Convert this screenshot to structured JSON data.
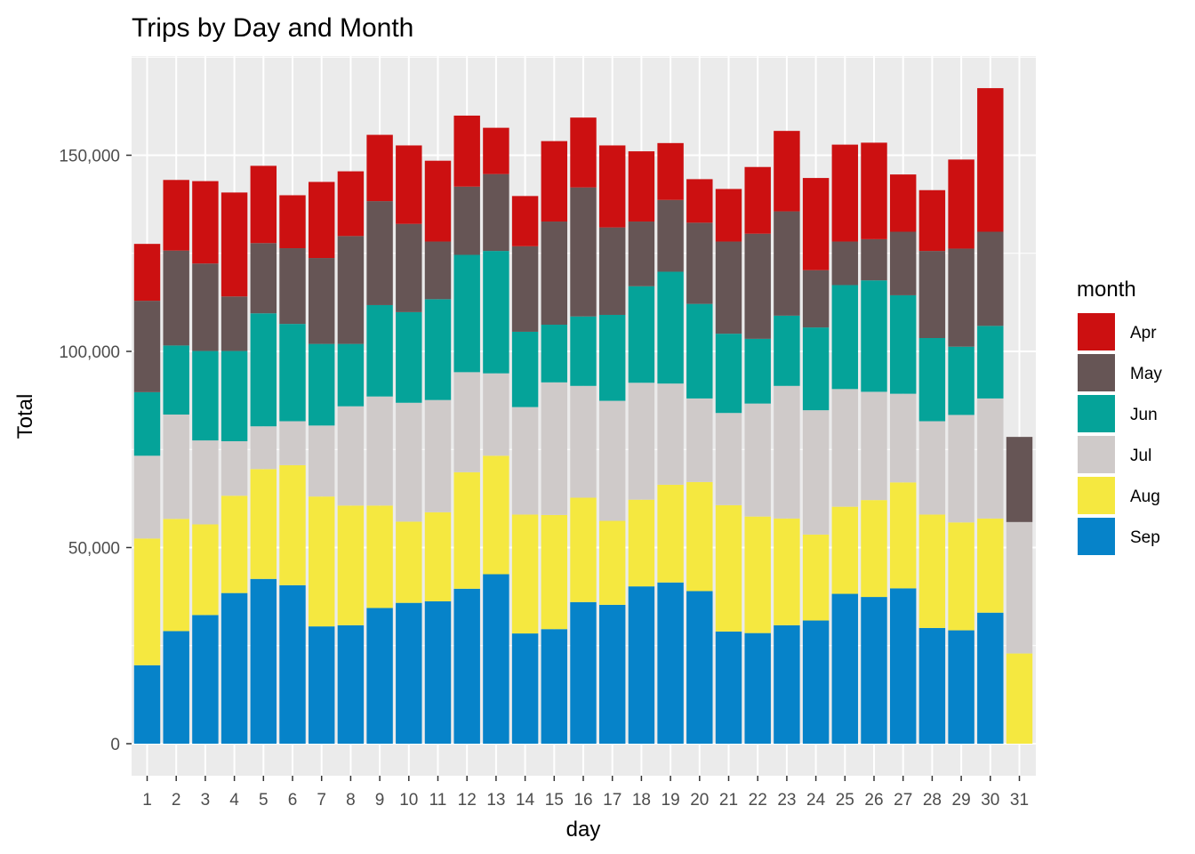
{
  "chart_data": {
    "type": "bar",
    "stacked": true,
    "title": "Trips by Day and Month",
    "xlabel": "day",
    "ylabel": "Total",
    "ylim": [
      0,
      175000
    ],
    "yticks": [
      0,
      50000,
      100000,
      150000
    ],
    "ytick_labels": [
      "0",
      "50,000",
      "100,000",
      "150,000"
    ],
    "grid": true,
    "legend": {
      "title": "month",
      "position": "right"
    },
    "categories": [
      "1",
      "2",
      "3",
      "4",
      "5",
      "6",
      "7",
      "8",
      "9",
      "10",
      "11",
      "12",
      "13",
      "14",
      "15",
      "16",
      "17",
      "18",
      "19",
      "20",
      "21",
      "22",
      "23",
      "24",
      "25",
      "26",
      "27",
      "28",
      "29",
      "30",
      "31"
    ],
    "series": [
      {
        "name": "Apr",
        "color": "#CC1011",
        "values": [
          14500,
          18000,
          21000,
          26500,
          19700,
          13500,
          19400,
          16500,
          16900,
          20000,
          20600,
          18100,
          11800,
          12800,
          20500,
          17800,
          20900,
          17900,
          14500,
          11100,
          13400,
          17000,
          20500,
          23500,
          24700,
          24600,
          14600,
          15500,
          22700,
          36600,
          0
        ]
      },
      {
        "name": "May",
        "color": "#665555",
        "values": [
          23300,
          24200,
          22300,
          13900,
          17900,
          19300,
          21900,
          27500,
          26500,
          22500,
          14700,
          17400,
          19600,
          21800,
          26300,
          32900,
          22300,
          16500,
          18300,
          20700,
          23500,
          26800,
          26600,
          14600,
          11100,
          10500,
          16200,
          22200,
          25000,
          24000,
          21700
        ]
      },
      {
        "name": "Jun",
        "color": "#05A399",
        "values": [
          16200,
          17600,
          22800,
          23000,
          28800,
          24800,
          20800,
          15900,
          23300,
          23100,
          25700,
          29900,
          31200,
          19200,
          14700,
          17700,
          21900,
          24600,
          28500,
          24100,
          20200,
          16500,
          17900,
          21100,
          26500,
          28400,
          25100,
          21200,
          17400,
          18500,
          0
        ]
      },
      {
        "name": "Jul",
        "color": "#CFCAC9",
        "values": [
          21100,
          26600,
          21400,
          13900,
          10900,
          11200,
          18100,
          25300,
          27800,
          30300,
          28600,
          25500,
          21000,
          27400,
          33800,
          28500,
          30600,
          29800,
          25800,
          21300,
          23500,
          28800,
          33800,
          31700,
          30000,
          27600,
          22600,
          23800,
          27400,
          30600,
          33500
        ]
      },
      {
        "name": "Aug",
        "color": "#F5E840",
        "values": [
          32300,
          28600,
          23100,
          24800,
          28000,
          30600,
          33100,
          30500,
          26100,
          20700,
          22700,
          29700,
          30200,
          30300,
          29100,
          26600,
          21400,
          22100,
          24900,
          27800,
          32200,
          29700,
          27200,
          21900,
          22200,
          24700,
          27000,
          28900,
          27500,
          24000,
          23000
        ]
      },
      {
        "name": "Sep",
        "color": "#0683C9",
        "values": [
          20000,
          28700,
          32800,
          38400,
          42000,
          40400,
          29900,
          30200,
          34600,
          35900,
          36300,
          39500,
          43200,
          28100,
          29200,
          36100,
          35400,
          40100,
          41100,
          38900,
          28600,
          28200,
          30200,
          31400,
          38200,
          37400,
          39600,
          29500,
          28900,
          33400,
          0
        ]
      }
    ]
  }
}
